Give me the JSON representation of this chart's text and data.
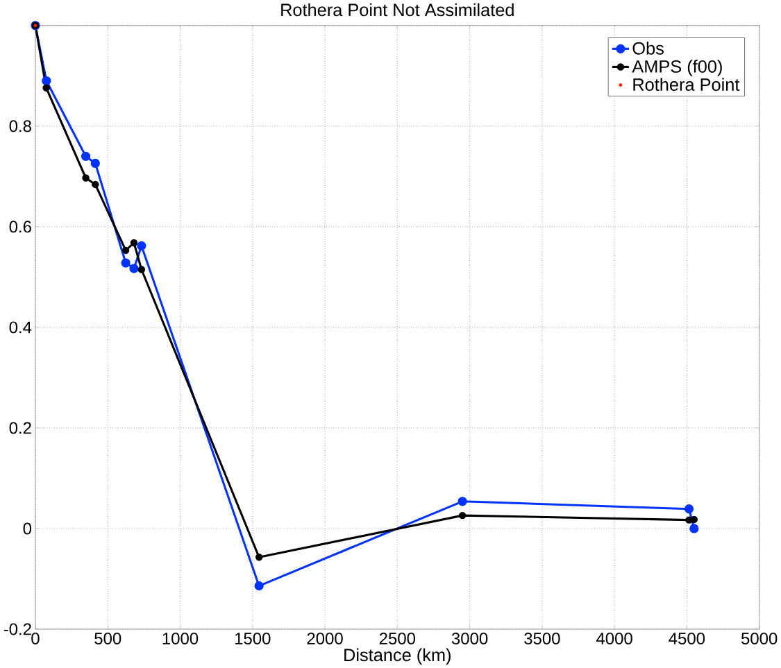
{
  "chart_data": {
    "type": "line",
    "title": "Rothera Point Not Assimilated",
    "xlabel": "Distance (km)",
    "xlim": [
      0,
      5000
    ],
    "xticks": [
      0,
      500,
      1000,
      1500,
      2000,
      2500,
      3000,
      3500,
      4000,
      4500,
      5000
    ],
    "ylim": [
      -0.2,
      1
    ],
    "yticks": [
      -0.2,
      0,
      0.2,
      0.4,
      0.6,
      0.8,
      {
        "value": 1,
        "label": null
      }
    ],
    "grid": true,
    "legend": "top right",
    "marker": "circle",
    "line_style": "solid",
    "series": [
      {
        "name": "Obs",
        "color": "#0033ff",
        "x": [
          0,
          76,
          348,
          414,
          624,
          681,
          733,
          1545,
          2950,
          4515,
          4550
        ],
        "values": [
          1.0,
          0.89,
          0.74,
          0.726,
          0.528,
          0.517,
          0.562,
          -0.114,
          0.054,
          0.039,
          0.0
        ]
      },
      {
        "name": "AMPS (f00)",
        "color": "#000000",
        "x": [
          0,
          75,
          348,
          414,
          624,
          681,
          733,
          1545,
          2950,
          4515,
          4550
        ],
        "values": [
          1.0,
          0.876,
          0.697,
          0.684,
          0.553,
          0.568,
          0.515,
          -0.057,
          0.026,
          0.017,
          0.018
        ]
      },
      {
        "name": "Rothera Point",
        "type": "scatter",
        "color": "#ff2200",
        "x": [
          0
        ],
        "values": [
          1.0
        ]
      }
    ]
  }
}
